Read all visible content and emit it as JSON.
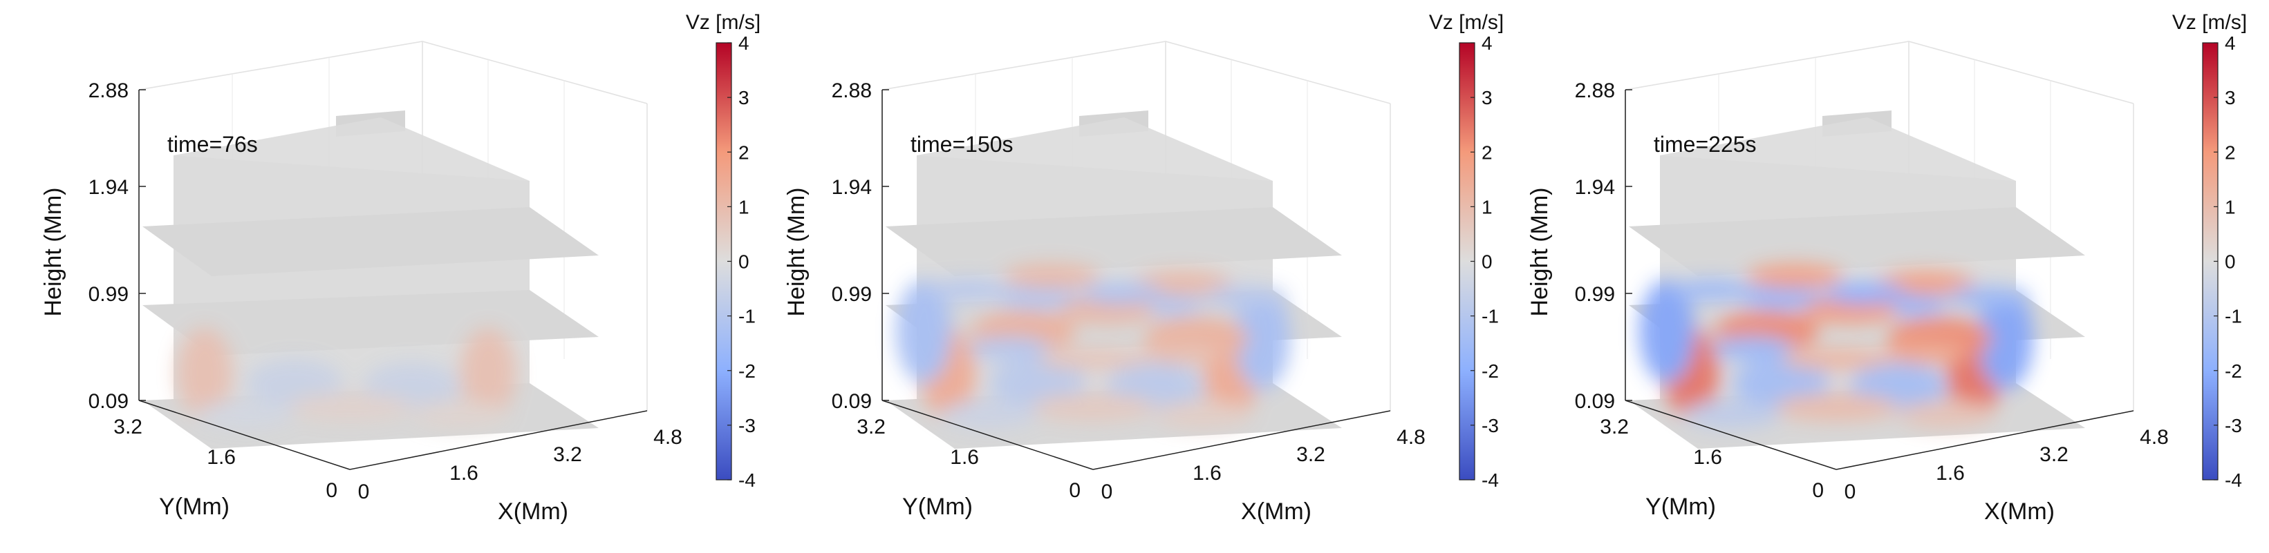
{
  "chart_data": [
    {
      "type": "heatmap",
      "title": "",
      "annotation": "time=76s",
      "xlabel": "X(Mm)",
      "ylabel": "Y(Mm)",
      "zlabel": "Height (Mm)",
      "x_ticks": [
        "0",
        "1.6",
        "3.2",
        "4.8"
      ],
      "y_ticks": [
        "0",
        "1.6",
        "3.2"
      ],
      "z_ticks": [
        "0.09",
        "0.99",
        "1.94",
        "2.88"
      ],
      "colorbar": {
        "label": "Vz [m/s]",
        "ticks": [
          "-4",
          "-3",
          "-2",
          "-1",
          "0",
          "1",
          "2",
          "3",
          "4"
        ],
        "range": [
          -4,
          4
        ]
      },
      "strength": 0.35,
      "reach": 1
    },
    {
      "type": "heatmap",
      "title": "",
      "annotation": "time=150s",
      "xlabel": "X(Mm)",
      "ylabel": "Y(Mm)",
      "zlabel": "Height (Mm)",
      "x_ticks": [
        "0",
        "1.6",
        "3.2",
        "4.8"
      ],
      "y_ticks": [
        "0",
        "1.6",
        "3.2"
      ],
      "z_ticks": [
        "0.09",
        "0.99",
        "1.94",
        "2.88"
      ],
      "colorbar": {
        "label": "Vz [m/s]",
        "ticks": [
          "-4",
          "-3",
          "-2",
          "-1",
          "0",
          "1",
          "2",
          "3",
          "4"
        ],
        "range": [
          -4,
          4
        ]
      },
      "strength": 0.6,
      "reach": 2
    },
    {
      "type": "heatmap",
      "title": "",
      "annotation": "time=225s",
      "xlabel": "X(Mm)",
      "ylabel": "Y(Mm)",
      "zlabel": "Height (Mm)",
      "x_ticks": [
        "0",
        "1.6",
        "3.2",
        "4.8"
      ],
      "y_ticks": [
        "0",
        "1.6",
        "3.2"
      ],
      "z_ticks": [
        "0.09",
        "0.99",
        "1.94",
        "2.88"
      ],
      "colorbar": {
        "label": "Vz [m/s]",
        "ticks": [
          "-4",
          "-3",
          "-2",
          "-1",
          "0",
          "1",
          "2",
          "3",
          "4"
        ],
        "range": [
          -4,
          4
        ]
      },
      "strength": 1.0,
      "reach": 2
    }
  ]
}
